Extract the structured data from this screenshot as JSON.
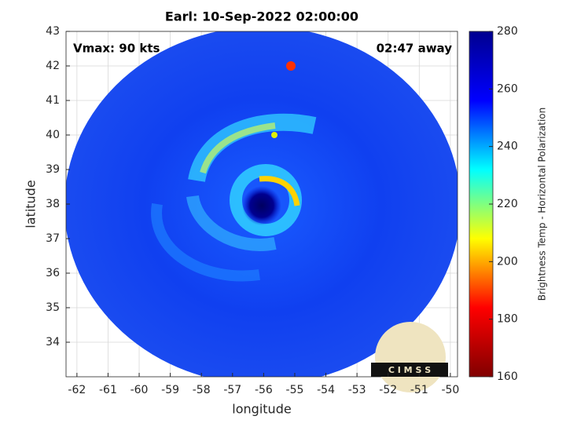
{
  "chart_data": {
    "type": "heatmap",
    "title": "Earl: 10-Sep-2022 02:00:00",
    "annotations": [
      "Vmax: 90 kts",
      "02:47 away"
    ],
    "x_label": "longitude",
    "y_label": "latitude",
    "xlim": [
      -62.35,
      -49.77
    ],
    "ylim": [
      33,
      43
    ],
    "xticks": [
      -62,
      -61,
      -60,
      -59,
      -58,
      -57,
      -56,
      -55,
      -54,
      -53,
      -52,
      -51,
      -50
    ],
    "yticks": [
      34,
      35,
      36,
      37,
      38,
      39,
      40,
      41,
      42,
      43
    ],
    "grid": true,
    "colorbar": {
      "label": "Brightness Temp - Horizontal Polarization",
      "lim": [
        160,
        280
      ],
      "ticks": [
        160,
        180,
        200,
        220,
        240,
        260,
        280
      ],
      "colormap": [
        "#800000",
        "#ff0000",
        "#ffff00",
        "#00ffff",
        "#0000ff",
        "#00008f"
      ]
    },
    "logo": "C I M S S"
  }
}
